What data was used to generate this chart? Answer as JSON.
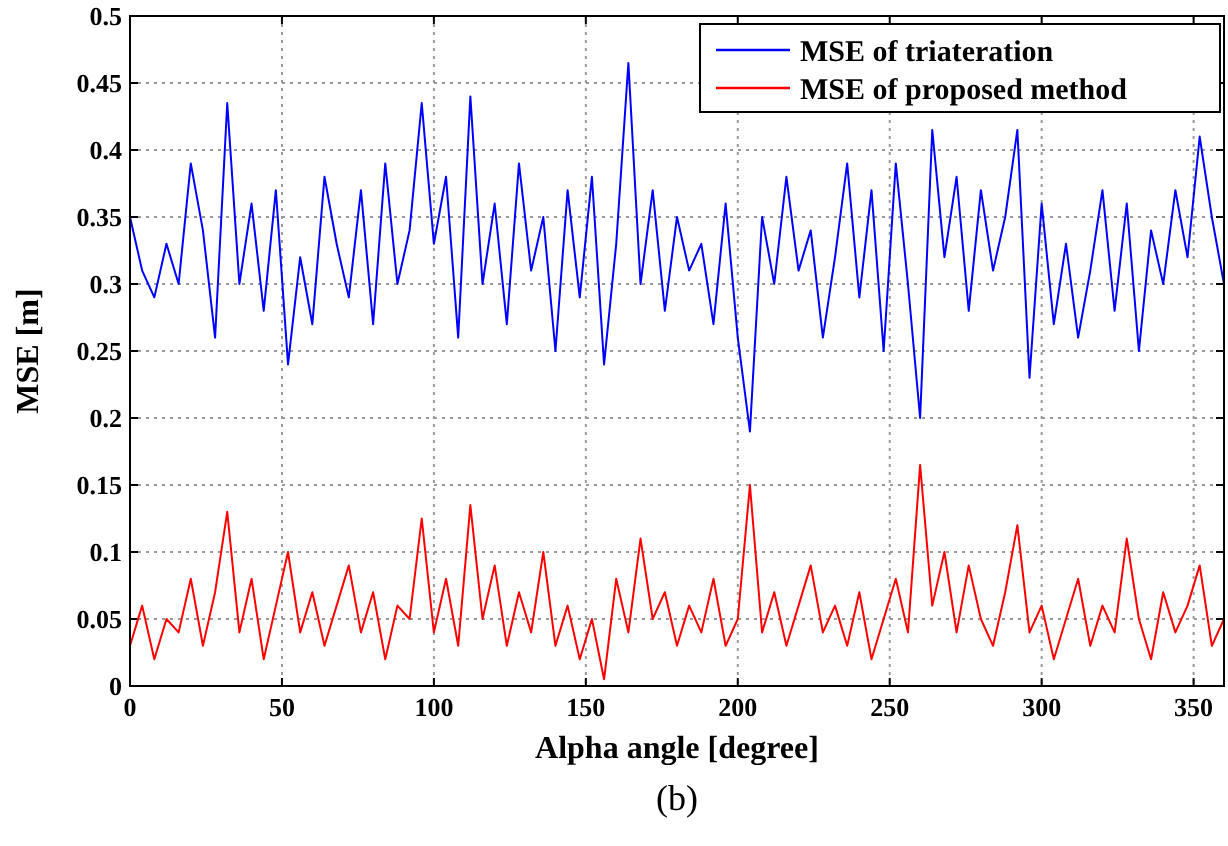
{
  "chart_data": {
    "type": "line",
    "xlabel": "Alpha angle [degree]",
    "ylabel": "MSE [m]",
    "annotations": [
      "(b)"
    ],
    "x": [
      0,
      4,
      8,
      12,
      16,
      20,
      24,
      28,
      32,
      36,
      40,
      44,
      48,
      52,
      56,
      60,
      64,
      68,
      72,
      76,
      80,
      84,
      88,
      92,
      96,
      100,
      104,
      108,
      112,
      116,
      120,
      124,
      128,
      132,
      136,
      140,
      144,
      148,
      152,
      156,
      160,
      164,
      168,
      172,
      176,
      180,
      184,
      188,
      192,
      196,
      200,
      204,
      208,
      212,
      216,
      220,
      224,
      228,
      232,
      236,
      240,
      244,
      248,
      252,
      256,
      260,
      264,
      268,
      272,
      276,
      280,
      284,
      288,
      292,
      296,
      300,
      304,
      308,
      312,
      316,
      320,
      324,
      328,
      332,
      336,
      340,
      344,
      348,
      352,
      356,
      360
    ],
    "series": [
      {
        "name": "MSE of triateration",
        "color": "#0000ff",
        "values": [
          0.35,
          0.31,
          0.29,
          0.33,
          0.3,
          0.39,
          0.34,
          0.26,
          0.435,
          0.3,
          0.36,
          0.28,
          0.37,
          0.24,
          0.32,
          0.27,
          0.38,
          0.33,
          0.29,
          0.37,
          0.27,
          0.39,
          0.3,
          0.34,
          0.435,
          0.33,
          0.38,
          0.26,
          0.44,
          0.3,
          0.36,
          0.27,
          0.39,
          0.31,
          0.35,
          0.25,
          0.37,
          0.29,
          0.38,
          0.24,
          0.33,
          0.465,
          0.3,
          0.37,
          0.28,
          0.35,
          0.31,
          0.33,
          0.27,
          0.36,
          0.26,
          0.19,
          0.35,
          0.3,
          0.38,
          0.31,
          0.34,
          0.26,
          0.32,
          0.39,
          0.29,
          0.37,
          0.25,
          0.39,
          0.3,
          0.2,
          0.415,
          0.32,
          0.38,
          0.28,
          0.37,
          0.31,
          0.35,
          0.415,
          0.23,
          0.36,
          0.27,
          0.33,
          0.26,
          0.31,
          0.37,
          0.28,
          0.36,
          0.25,
          0.34,
          0.3,
          0.37,
          0.32,
          0.41,
          0.35,
          0.3
        ]
      },
      {
        "name": "MSE of proposed method",
        "color": "#ff0000",
        "values": [
          0.03,
          0.06,
          0.02,
          0.05,
          0.04,
          0.08,
          0.03,
          0.07,
          0.13,
          0.04,
          0.08,
          0.02,
          0.06,
          0.1,
          0.04,
          0.07,
          0.03,
          0.06,
          0.09,
          0.04,
          0.07,
          0.02,
          0.06,
          0.05,
          0.125,
          0.04,
          0.08,
          0.03,
          0.135,
          0.05,
          0.09,
          0.03,
          0.07,
          0.04,
          0.1,
          0.03,
          0.06,
          0.02,
          0.05,
          0.005,
          0.08,
          0.04,
          0.11,
          0.05,
          0.07,
          0.03,
          0.06,
          0.04,
          0.08,
          0.03,
          0.05,
          0.15,
          0.04,
          0.07,
          0.03,
          0.06,
          0.09,
          0.04,
          0.06,
          0.03,
          0.07,
          0.02,
          0.05,
          0.08,
          0.04,
          0.165,
          0.06,
          0.1,
          0.04,
          0.09,
          0.05,
          0.03,
          0.07,
          0.12,
          0.04,
          0.06,
          0.02,
          0.05,
          0.08,
          0.03,
          0.06,
          0.04,
          0.11,
          0.05,
          0.02,
          0.07,
          0.04,
          0.06,
          0.09,
          0.03,
          0.05
        ]
      }
    ],
    "xlim": [
      0,
      360
    ],
    "xticks": [
      0,
      50,
      100,
      150,
      200,
      250,
      300,
      350
    ],
    "ylim": [
      0,
      0.5
    ],
    "yticks": [
      0,
      0.05,
      0.1,
      0.15,
      0.2,
      0.25,
      0.3,
      0.35,
      0.4,
      0.45,
      0.5
    ],
    "grid": true,
    "legend": "top right",
    "line_style": "solid",
    "marker": "none"
  }
}
